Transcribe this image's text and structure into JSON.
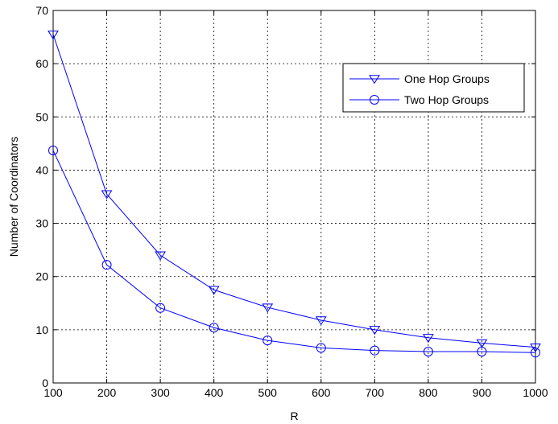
{
  "chart_data": {
    "type": "line",
    "title": "",
    "xlabel": "R",
    "ylabel": "Number of Coordinators",
    "x": [
      100,
      200,
      300,
      400,
      500,
      600,
      700,
      800,
      900,
      1000
    ],
    "xlim": [
      100,
      1000
    ],
    "ylim": [
      0,
      70
    ],
    "xticks": [
      "100",
      "200",
      "300",
      "400",
      "500",
      "600",
      "700",
      "800",
      "900",
      "1000"
    ],
    "yticks": [
      "0",
      "10",
      "20",
      "30",
      "40",
      "50",
      "60",
      "70"
    ],
    "grid": true,
    "legend_position": "top-right",
    "series": [
      {
        "name": "One Hop Groups",
        "marker": "triangle-down",
        "color": "#0000ff",
        "values": [
          65.5,
          35.5,
          24,
          17.5,
          14.2,
          11.8,
          10,
          8.5,
          7.5,
          6.7
        ]
      },
      {
        "name": "Two Hop Groups",
        "marker": "circle",
        "color": "#0000ff",
        "values": [
          43.7,
          22.2,
          14.1,
          10.4,
          8,
          6.6,
          6.1,
          5.9,
          5.9,
          5.7
        ]
      }
    ]
  }
}
